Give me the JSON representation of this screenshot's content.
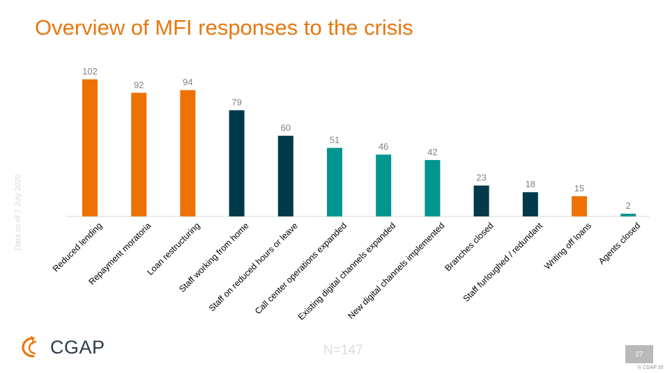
{
  "title": "Overview of MFI responses to the crisis",
  "side_note": "Data as of 7 July 2020",
  "n_label": "N=147",
  "page_number": "27",
  "copyright": "© CGAP 20",
  "logo_text": "CGAP",
  "colors": {
    "orange": "#EE7203",
    "navy": "#003A4B",
    "teal": "#00958F",
    "title": "#E8770E",
    "value_label": "#808080"
  },
  "chart_data": {
    "type": "bar",
    "categories": [
      "Reduced lending",
      "Repayment moratoria",
      "Loan restructuring",
      "Staff working from home",
      "Staff on reduced hours or leave",
      "Call center operations expanded",
      "Existing digital channels expanded",
      "New digital channels implemented",
      "Branches closed",
      "Staff furloughed / redundant",
      "Writing off loans",
      "Agents closed"
    ],
    "values": [
      102,
      92,
      94,
      79,
      60,
      51,
      46,
      42,
      23,
      18,
      15,
      2
    ],
    "bar_colors": [
      "orange",
      "orange",
      "orange",
      "navy",
      "navy",
      "teal",
      "teal",
      "teal",
      "navy",
      "navy",
      "orange",
      "teal"
    ],
    "ylim": [
      0,
      102
    ],
    "grid": false,
    "legend": "none"
  }
}
